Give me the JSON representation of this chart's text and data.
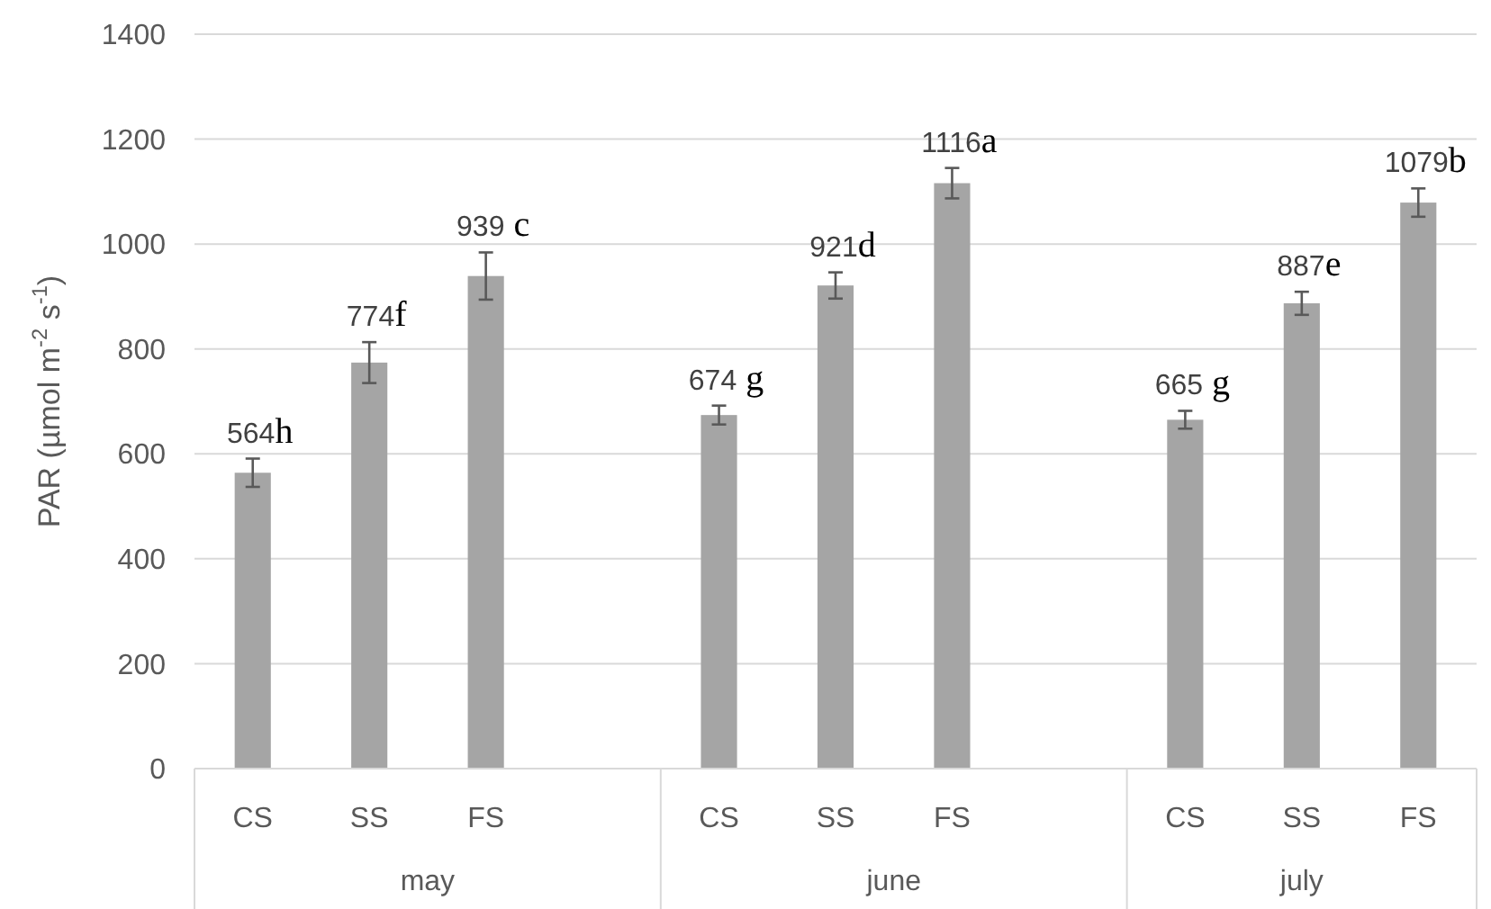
{
  "chart_data": {
    "type": "bar",
    "ylabel": "PAR (µmol m$^{-2}$ s$^{-1}$)",
    "categories": [
      "CS",
      "SS",
      "FS",
      null,
      "CS",
      "SS",
      "FS",
      null,
      "CS",
      "SS",
      "FS"
    ],
    "values": [
      564,
      774,
      939,
      null,
      674,
      921,
      1116,
      null,
      665,
      887,
      1079
    ],
    "errors": [
      27,
      39,
      45,
      null,
      18,
      25,
      29,
      null,
      17,
      22,
      27
    ],
    "value_labels": [
      "564h",
      "774f",
      "939 c",
      null,
      "674 g",
      "921d",
      "1116a",
      null,
      "665 g",
      "887e",
      "1079b"
    ],
    "color": "#a5a5a5",
    "annotations": [
      "may",
      "june",
      "july"
    ],
    "ylim": [
      0,
      1400
    ],
    "yticks": [
      0,
      200,
      400,
      600,
      800,
      1000,
      1200,
      1400
    ],
    "grid": "y"
  }
}
